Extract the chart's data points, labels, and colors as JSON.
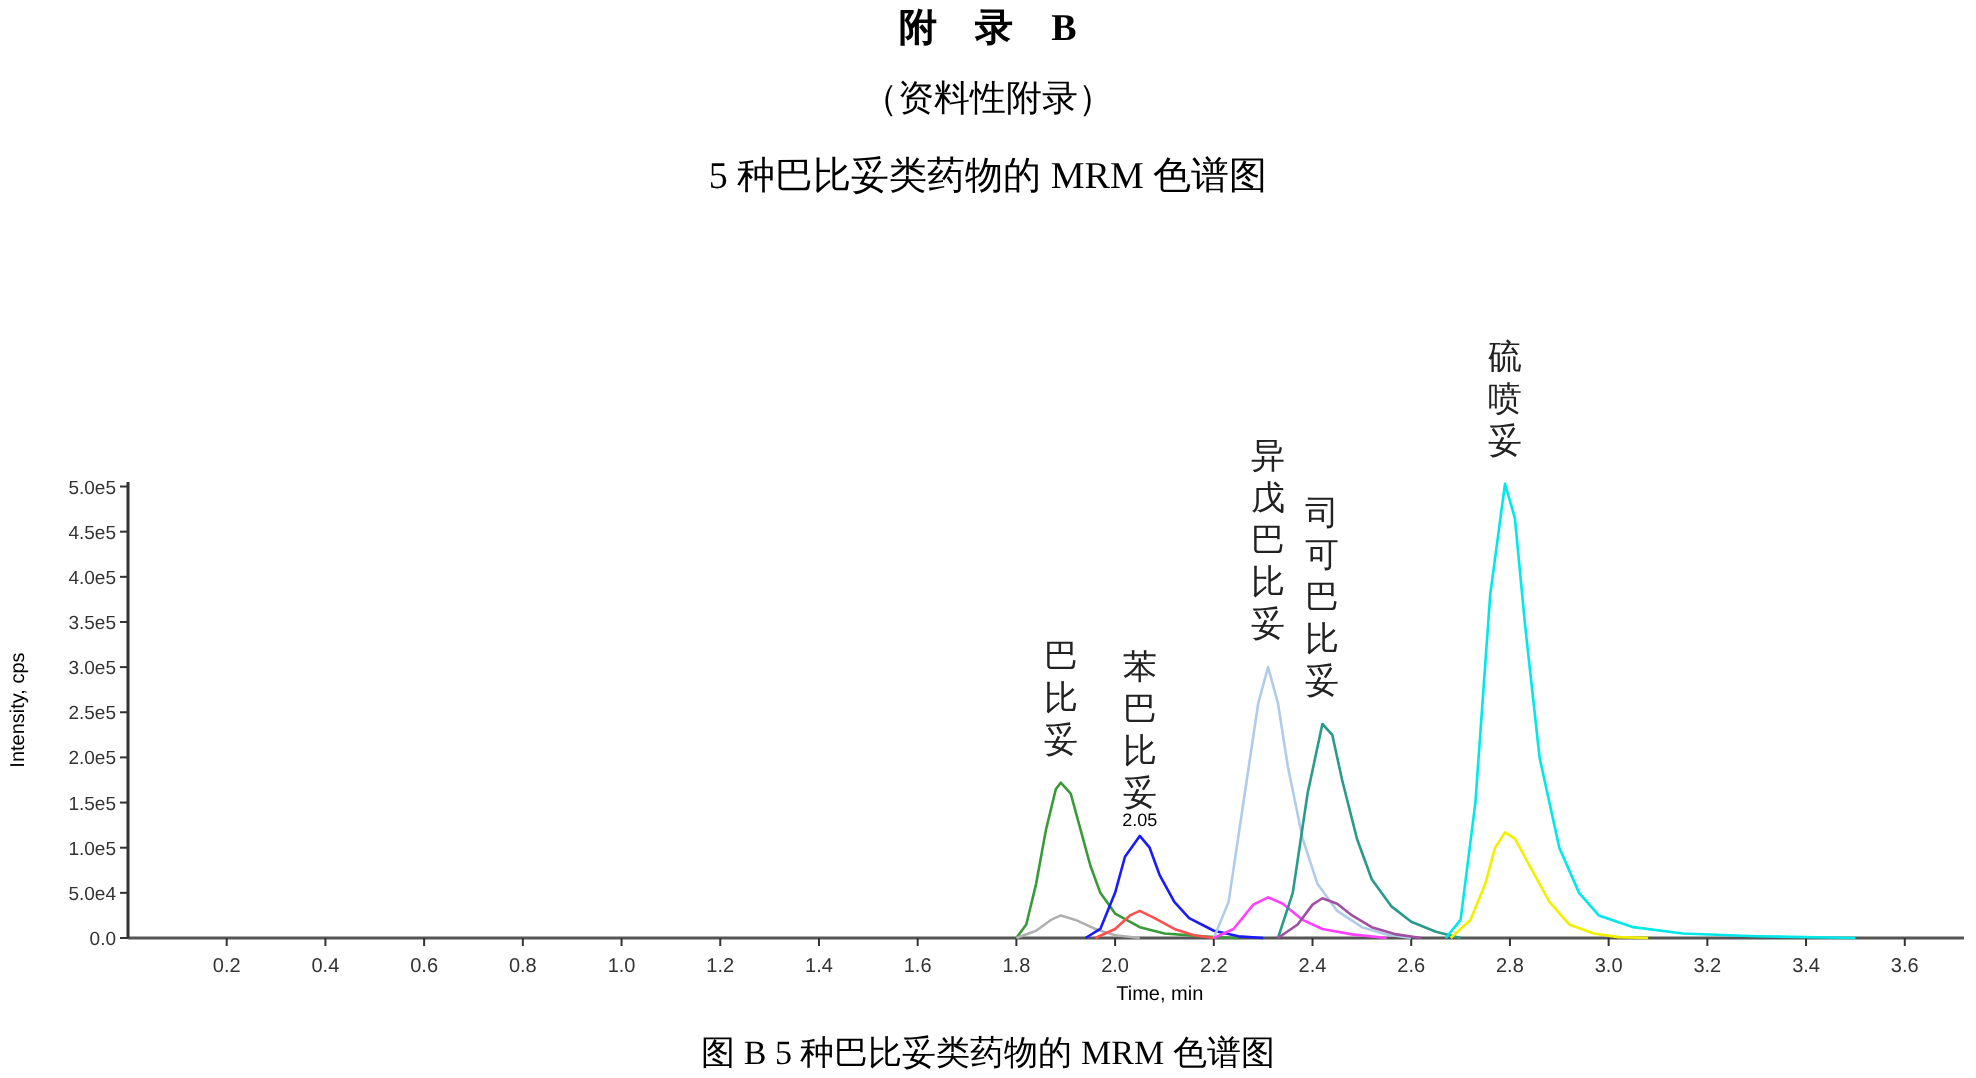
{
  "chart_data": {
    "type": "line",
    "title": "附　录　B",
    "subtitle": "（资料性附录）",
    "xlabel": "Time, min",
    "ylabel": "Intensity, cps",
    "annotations": [
      "5 种巴比妥类药物的 MRM 色谱图",
      "图 B 5 种巴比妥类药物的 MRM 色谱图",
      {
        "text": "巴比妥",
        "x": 1.89,
        "y": 172000
      },
      {
        "text": "2.05",
        "x": 2.05,
        "y": 113000
      },
      {
        "text": "苯巴比妥",
        "x": 2.05,
        "y": 113000
      },
      {
        "text": "异戊巴比妥",
        "x": 2.31,
        "y": 300000
      },
      {
        "text": "司可巴比妥",
        "x": 2.42,
        "y": 237000
      },
      {
        "text": "硫喷妥",
        "x": 2.79,
        "y": 503000
      }
    ],
    "xlim": [
      0,
      3.72
    ],
    "ylim": [
      0,
      505000
    ],
    "xticks": [
      0.2,
      0.4,
      0.6,
      0.8,
      {
        "value": 1,
        "label": "1.0"
      },
      1.2,
      1.4,
      1.6,
      1.8,
      {
        "value": 2,
        "label": "2.0"
      },
      2.2,
      2.4,
      2.6,
      2.8,
      {
        "value": 3,
        "label": "3.0"
      },
      3.2,
      3.4,
      3.6
    ],
    "yticks": [
      {
        "value": 0,
        "label": "0.0"
      },
      {
        "value": 50000,
        "label": "5.0e4"
      },
      {
        "value": 100000,
        "label": "1.0e5"
      },
      {
        "value": 150000,
        "label": "1.5e5"
      },
      {
        "value": 200000,
        "label": "2.0e5"
      },
      {
        "value": 250000,
        "label": "2.5e5"
      },
      {
        "value": 300000,
        "label": "3.0e5"
      },
      {
        "value": 350000,
        "label": "3.5e5"
      },
      {
        "value": 400000,
        "label": "4.0e5"
      },
      {
        "value": 450000,
        "label": "4.5e5"
      },
      {
        "value": 500000,
        "label": "5.0e5"
      }
    ],
    "grid": false,
    "marker": "none",
    "line_style": "solid",
    "series": [
      {
        "color": "#3a9a3a",
        "x": [
          1.8,
          1.82,
          1.84,
          1.86,
          1.88,
          1.89,
          1.91,
          1.93,
          1.95,
          1.97,
          2.0,
          2.05,
          2.1,
          2.2,
          2.25
        ],
        "values": [
          0,
          15000,
          60000,
          120000,
          165000,
          172000,
          160000,
          120000,
          80000,
          50000,
          27000,
          12000,
          5000,
          1000,
          0
        ]
      },
      {
        "color": "#b0b0b0",
        "x": [
          1.8,
          1.84,
          1.87,
          1.89,
          1.92,
          1.96,
          2.0,
          2.05
        ],
        "values": [
          0,
          8000,
          20000,
          25000,
          20000,
          10000,
          3000,
          0
        ]
      },
      {
        "color": "#1a1aff",
        "x": [
          1.94,
          1.97,
          2.0,
          2.02,
          2.05,
          2.07,
          2.09,
          2.12,
          2.15,
          2.2,
          2.25,
          2.3
        ],
        "values": [
          0,
          10000,
          50000,
          90000,
          113000,
          100000,
          70000,
          40000,
          22000,
          8000,
          2000,
          0
        ]
      },
      {
        "color": "#ff5050",
        "x": [
          1.96,
          2.0,
          2.03,
          2.05,
          2.08,
          2.12,
          2.16,
          2.2
        ],
        "values": [
          0,
          10000,
          25000,
          30000,
          22000,
          10000,
          3000,
          0
        ]
      },
      {
        "color": "#b0cce8",
        "x": [
          2.2,
          2.23,
          2.26,
          2.29,
          2.31,
          2.33,
          2.35,
          2.38,
          2.41,
          2.45,
          2.5,
          2.55,
          2.6
        ],
        "values": [
          0,
          40000,
          150000,
          260000,
          300000,
          260000,
          190000,
          110000,
          60000,
          30000,
          12000,
          4000,
          0
        ]
      },
      {
        "color": "#ff40ff",
        "x": [
          2.2,
          2.24,
          2.28,
          2.31,
          2.34,
          2.38,
          2.42,
          2.48,
          2.55
        ],
        "values": [
          0,
          10000,
          37000,
          45000,
          38000,
          20000,
          10000,
          4000,
          0
        ]
      },
      {
        "color": "#2a9a8a",
        "x": [
          2.33,
          2.36,
          2.39,
          2.42,
          2.44,
          2.46,
          2.49,
          2.52,
          2.56,
          2.6,
          2.65,
          2.7
        ],
        "values": [
          0,
          50000,
          160000,
          237000,
          225000,
          175000,
          110000,
          65000,
          35000,
          18000,
          7000,
          0
        ]
      },
      {
        "color": "#a050a0",
        "x": [
          2.33,
          2.37,
          2.4,
          2.42,
          2.45,
          2.48,
          2.52,
          2.57,
          2.62
        ],
        "values": [
          0,
          15000,
          37000,
          44000,
          38000,
          25000,
          12000,
          4000,
          0
        ]
      },
      {
        "color": "#00e8e8",
        "x": [
          2.67,
          2.7,
          2.73,
          2.76,
          2.79,
          2.81,
          2.83,
          2.86,
          2.9,
          2.94,
          2.98,
          3.05,
          3.15,
          3.3,
          3.5
        ],
        "values": [
          0,
          20000,
          150000,
          380000,
          503000,
          465000,
          350000,
          200000,
          100000,
          50000,
          25000,
          12000,
          5000,
          2000,
          0
        ]
      },
      {
        "color": "#f0f000",
        "x": [
          2.68,
          2.72,
          2.75,
          2.77,
          2.79,
          2.81,
          2.84,
          2.88,
          2.92,
          2.97,
          3.02,
          3.08
        ],
        "values": [
          0,
          20000,
          60000,
          100000,
          117000,
          110000,
          80000,
          40000,
          15000,
          5000,
          1000,
          0
        ]
      }
    ]
  }
}
